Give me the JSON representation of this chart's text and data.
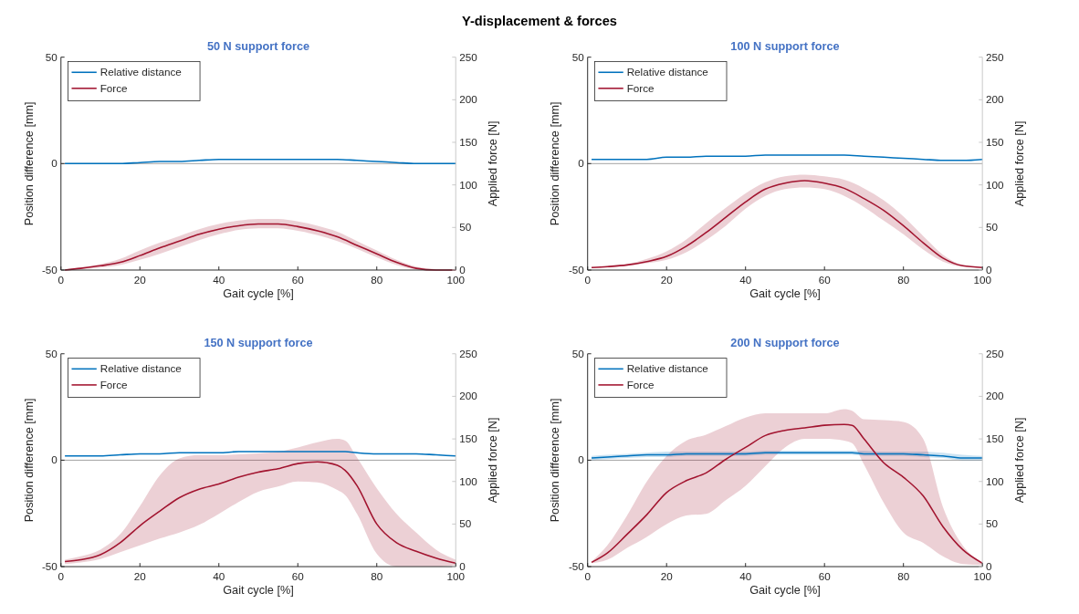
{
  "chart_data": [
    {
      "type": "line",
      "title": "50 N support force",
      "annotations": [
        "Y-displacement & forces"
      ],
      "xlabel": "Gait cycle [%]",
      "ylabel": "Position difference [mm]",
      "y2label": "Applied force [N]",
      "xlim": [
        0,
        100
      ],
      "xticks": [
        0,
        20,
        40,
        60,
        80,
        100
      ],
      "ylim": [
        -50,
        50
      ],
      "yticks": [
        -50,
        0,
        50
      ],
      "y2lim": [
        0,
        250
      ],
      "y2ticks": [
        0,
        50,
        100,
        150,
        200,
        250
      ],
      "legend": "top left",
      "ref_lines": [
        {
          "axis": "y",
          "value": 0,
          "color": "#a0a0a0"
        }
      ],
      "x": [
        1,
        5,
        10,
        15,
        20,
        25,
        30,
        35,
        40,
        45,
        50,
        55,
        60,
        65,
        70,
        75,
        80,
        85,
        90,
        95,
        100
      ],
      "series": [
        {
          "name": "Relative distance",
          "color": "#0072bd",
          "values": [
            0,
            0,
            0,
            0,
            0.5,
            1,
            1,
            1.5,
            2,
            2,
            2,
            2,
            2,
            2,
            2,
            1.5,
            1,
            0.5,
            0,
            0,
            0
          ]
        },
        {
          "name": "Force",
          "color": "#a2142f",
          "axis": "y2",
          "values": [
            0,
            2,
            5,
            9,
            17,
            26,
            34,
            42,
            48,
            52,
            54,
            54,
            51,
            46,
            39,
            29,
            19,
            9,
            2,
            0,
            0
          ],
          "lower": [
            0,
            1,
            3,
            6,
            12,
            19,
            27,
            35,
            42,
            47,
            49,
            49,
            46,
            41,
            34,
            25,
            15,
            6,
            1,
            0,
            0
          ],
          "upper": [
            0,
            3,
            7,
            13,
            23,
            32,
            40,
            48,
            54,
            58,
            60,
            60,
            57,
            52,
            45,
            34,
            23,
            12,
            4,
            1,
            0
          ]
        }
      ]
    },
    {
      "type": "line",
      "title": "100 N support force",
      "xlabel": "Gait cycle [%]",
      "ylabel": "Position difference [mm]",
      "y2label": "Applied force [N]",
      "xlim": [
        0,
        100
      ],
      "xticks": [
        0,
        20,
        40,
        60,
        80,
        100
      ],
      "ylim": [
        -50,
        50
      ],
      "yticks": [
        -50,
        0,
        50
      ],
      "y2lim": [
        0,
        250
      ],
      "y2ticks": [
        0,
        50,
        100,
        150,
        200,
        250
      ],
      "legend": "top left",
      "ref_lines": [
        {
          "axis": "y",
          "value": 0,
          "color": "#a0a0a0"
        }
      ],
      "x": [
        1,
        5,
        10,
        15,
        20,
        25,
        30,
        35,
        40,
        45,
        50,
        55,
        60,
        65,
        70,
        75,
        80,
        85,
        90,
        95,
        100
      ],
      "series": [
        {
          "name": "Relative distance",
          "color": "#0072bd",
          "values": [
            2,
            2,
            2,
            2,
            3,
            3,
            3.5,
            3.5,
            3.5,
            4,
            4,
            4,
            4,
            4,
            3.5,
            3,
            2.5,
            2,
            1.5,
            1.5,
            2
          ]
        },
        {
          "name": "Force",
          "color": "#a2142f",
          "axis": "y2",
          "values": [
            3,
            4,
            6,
            10,
            16,
            28,
            44,
            62,
            80,
            95,
            102,
            105,
            102,
            96,
            84,
            70,
            52,
            32,
            14,
            5,
            3
          ],
          "lower": [
            3,
            3,
            5,
            8,
            12,
            21,
            35,
            52,
            72,
            87,
            95,
            97,
            95,
            87,
            74,
            58,
            42,
            24,
            10,
            4,
            3
          ],
          "upper": [
            3,
            4,
            7,
            13,
            22,
            36,
            55,
            73,
            90,
            103,
            110,
            112,
            110,
            106,
            96,
            82,
            63,
            40,
            18,
            6,
            3
          ]
        }
      ]
    },
    {
      "type": "line",
      "title": "150 N support force",
      "xlabel": "Gait cycle [%]",
      "ylabel": "Position difference [mm]",
      "y2label": "Applied force [N]",
      "xlim": [
        0,
        100
      ],
      "xticks": [
        0,
        20,
        40,
        60,
        80,
        100
      ],
      "ylim": [
        -50,
        50
      ],
      "yticks": [
        -50,
        0,
        50
      ],
      "y2lim": [
        0,
        250
      ],
      "y2ticks": [
        0,
        50,
        100,
        150,
        200,
        250
      ],
      "legend": "top left",
      "ref_lines": [
        {
          "axis": "y",
          "value": 0,
          "color": "#a0a0a0"
        }
      ],
      "x": [
        1,
        5,
        10,
        15,
        20,
        25,
        30,
        35,
        40,
        45,
        50,
        55,
        60,
        65,
        70,
        72,
        75,
        80,
        85,
        90,
        95,
        100
      ],
      "series": [
        {
          "name": "Relative distance",
          "color": "#0072bd",
          "values": [
            2,
            2,
            2,
            2.5,
            3,
            3,
            3.5,
            3.5,
            3.5,
            4,
            4,
            4,
            4,
            4,
            4,
            4,
            3.5,
            3,
            3,
            3,
            2.5,
            2
          ]
        },
        {
          "name": "Force",
          "color": "#a2142f",
          "axis": "y2",
          "values": [
            6,
            8,
            14,
            28,
            48,
            65,
            81,
            91,
            97,
            105,
            111,
            115,
            121,
            123,
            119,
            113,
            95,
            50,
            28,
            18,
            10,
            4
          ],
          "lower": [
            3,
            5,
            9,
            17,
            25,
            33,
            40,
            49,
            62,
            76,
            88,
            94,
            100,
            99,
            90,
            84,
            62,
            15,
            0,
            0,
            0,
            2
          ],
          "upper": [
            8,
            12,
            20,
            38,
            71,
            107,
            127,
            131,
            131,
            132,
            133,
            135,
            140,
            146,
            150,
            148,
            128,
            92,
            62,
            40,
            20,
            8
          ]
        }
      ]
    },
    {
      "type": "line",
      "title": "200 N support force",
      "xlabel": "Gait cycle [%]",
      "ylabel": "Position difference [mm]",
      "y2label": "Applied force [N]",
      "xlim": [
        0,
        100
      ],
      "xticks": [
        0,
        20,
        40,
        60,
        80,
        100
      ],
      "ylim": [
        -50,
        50
      ],
      "yticks": [
        -50,
        0,
        50
      ],
      "y2lim": [
        0,
        250
      ],
      "y2ticks": [
        0,
        50,
        100,
        150,
        200,
        250
      ],
      "legend": "top left",
      "ref_lines": [
        {
          "axis": "y",
          "value": 0,
          "color": "#a0a0a0"
        }
      ],
      "x": [
        1,
        5,
        10,
        15,
        20,
        25,
        30,
        35,
        40,
        45,
        50,
        55,
        60,
        65,
        67,
        70,
        75,
        80,
        85,
        90,
        95,
        100
      ],
      "series": [
        {
          "name": "Relative distance",
          "color": "#0072bd",
          "values": [
            1,
            1.5,
            2,
            2.5,
            2.5,
            3,
            3,
            3,
            3,
            3.5,
            3.5,
            3.5,
            3.5,
            3.5,
            3.5,
            3,
            3,
            3,
            2.5,
            2,
            1,
            1
          ],
          "lower": [
            0,
            0.5,
            1,
            1.5,
            1.5,
            2,
            2,
            2,
            2,
            2.5,
            2.5,
            2.5,
            2.5,
            2.5,
            2.5,
            2,
            2,
            2,
            1.5,
            1,
            0,
            0
          ],
          "upper": [
            2,
            2.5,
            3,
            3.5,
            4,
            4,
            4,
            4,
            4,
            4.5,
            4.5,
            4.5,
            4.5,
            4.5,
            4.5,
            4.5,
            4,
            4,
            4,
            3.5,
            2.5,
            2
          ]
        },
        {
          "name": "Force",
          "color": "#a2142f",
          "axis": "y2",
          "values": [
            5,
            16,
            38,
            61,
            87,
            101,
            110,
            126,
            140,
            154,
            160,
            163,
            166,
            167,
            166,
            150,
            122,
            105,
            83,
            47,
            20,
            4
          ],
          "lower": [
            4,
            8,
            22,
            35,
            50,
            60,
            62,
            78,
            95,
            118,
            140,
            150,
            150,
            148,
            145,
            120,
            75,
            40,
            28,
            12,
            3,
            2
          ],
          "upper": [
            6,
            25,
            60,
            100,
            130,
            148,
            155,
            165,
            175,
            180,
            180,
            180,
            180,
            185,
            183,
            173,
            172,
            170,
            150,
            70,
            25,
            5
          ]
        }
      ]
    }
  ]
}
